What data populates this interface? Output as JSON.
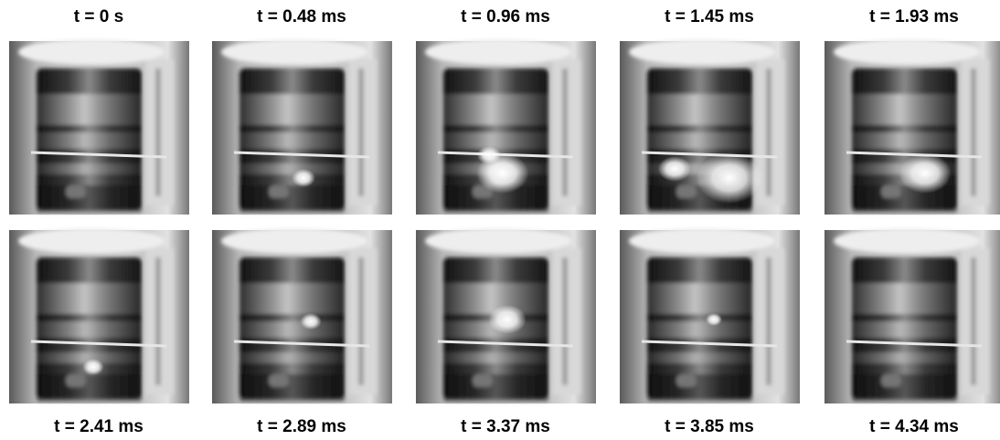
{
  "frames": [
    {
      "label": "t = 0 s"
    },
    {
      "label": "t = 0.48 ms"
    },
    {
      "label": "t = 0.96 ms"
    },
    {
      "label": "t = 1.45 ms"
    },
    {
      "label": "t = 1.93 ms"
    },
    {
      "label": "t = 2.41 ms"
    },
    {
      "label": "t = 2.89 ms"
    },
    {
      "label": "t = 3.37 ms"
    },
    {
      "label": "t = 3.85 ms"
    },
    {
      "label": "t = 4.34 ms"
    }
  ]
}
